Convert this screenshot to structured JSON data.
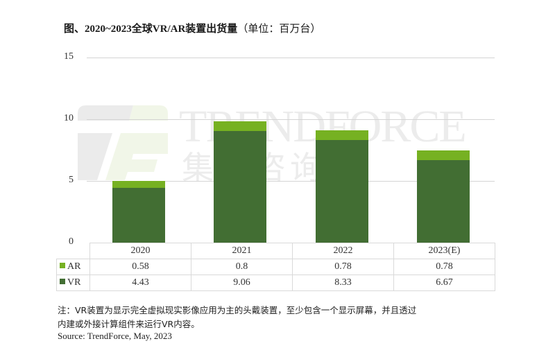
{
  "title": {
    "main": "图、2020~2023全球VR/AR装置出货量",
    "unit": "（单位：百万台）"
  },
  "watermark": {
    "brand": "TRENDFORCE",
    "brand_cn": "集邦咨询"
  },
  "colors": {
    "AR": "#76B122",
    "VR": "#426E33",
    "grid": "#d4d4d4"
  },
  "chart_data": {
    "type": "bar",
    "stacked": true,
    "title": "图、2020~2023全球VR/AR装置出货量（单位：百万台）",
    "xlabel": "",
    "ylabel": "百万台",
    "ylim": [
      0,
      15
    ],
    "yticks": [
      0,
      5,
      10,
      15
    ],
    "grid": true,
    "legend_position": "data-table",
    "categories": [
      "2020",
      "2021",
      "2022",
      "2023(E)"
    ],
    "series": [
      {
        "name": "VR",
        "color": "#426E33",
        "values": [
          4.43,
          9.06,
          8.33,
          6.67
        ]
      },
      {
        "name": "AR",
        "color": "#76B122",
        "values": [
          0.58,
          0.8,
          0.78,
          0.78
        ]
      }
    ]
  },
  "yaxis": {
    "ticks": [
      "0",
      "5",
      "10",
      "15"
    ]
  },
  "table": {
    "headers": [
      "2020",
      "2021",
      "2022",
      "2023(E)"
    ],
    "rows": [
      {
        "label": "AR",
        "values": [
          "0.58",
          "0.8",
          "0.78",
          "0.78"
        ]
      },
      {
        "label": "VR",
        "values": [
          "4.43",
          "9.06",
          "8.33",
          "6.67"
        ]
      }
    ]
  },
  "notes": {
    "line1": "注：VR装置为显示完全虚拟现实影像应用为主的头戴装置，至少包含一个显示屏幕，并且透过",
    "line2": "内建或外接计算组件来运行VR内容。",
    "source": "Source: TrendForce, May, 2023"
  }
}
